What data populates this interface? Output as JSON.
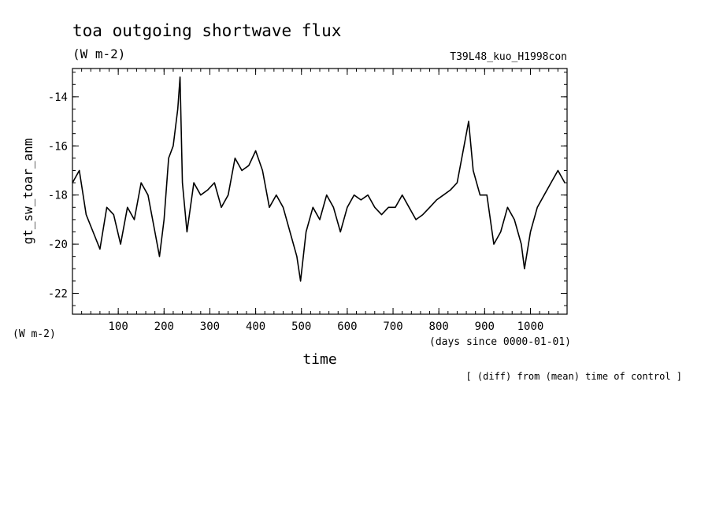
{
  "chart_data": {
    "type": "line",
    "title": "toa outgoing shortwave flux",
    "units": "(W m-2)",
    "run_label": "T39L48_kuo_H1998con",
    "ylabel": "gt_sw_toar_anm",
    "y_units_label": "(W m-2)",
    "xlabel": "time",
    "x_units_label": "(days since 0000-01-01)",
    "footnote": "[ (diff) from (mean) time of control ]",
    "xlim": [
      0,
      1080
    ],
    "ylim": [
      -22.85,
      -12.85
    ],
    "xticks_major": [
      100,
      200,
      300,
      400,
      500,
      600,
      700,
      800,
      900,
      1000
    ],
    "yticks_major": [
      -22,
      -20,
      -18,
      -16,
      -14
    ],
    "grid": false,
    "legend": "none",
    "line_color": "#000000",
    "series": [
      {
        "x": [
          0,
          15,
          30,
          45,
          60,
          75,
          90,
          105,
          120,
          135,
          150,
          165,
          180,
          190,
          200,
          210,
          220,
          230,
          235,
          240,
          250,
          265,
          280,
          295,
          310,
          325,
          340,
          355,
          370,
          385,
          400,
          415,
          430,
          445,
          460,
          475,
          490,
          498,
          510,
          525,
          540,
          555,
          570,
          585,
          600,
          615,
          630,
          645,
          660,
          675,
          690,
          705,
          720,
          735,
          750,
          765,
          780,
          795,
          810,
          825,
          840,
          855,
          865,
          875,
          890,
          905,
          920,
          935,
          950,
          965,
          980,
          987,
          1000,
          1015,
          1030,
          1045,
          1060,
          1075
        ],
        "y": [
          -17.5,
          -17.0,
          -18.8,
          -19.5,
          -20.2,
          -18.5,
          -18.8,
          -20.0,
          -18.5,
          -19.0,
          -17.5,
          -18.0,
          -19.5,
          -20.5,
          -19.0,
          -16.5,
          -16.0,
          -14.5,
          -13.2,
          -17.5,
          -19.5,
          -17.5,
          -18.0,
          -17.8,
          -17.5,
          -18.5,
          -18.0,
          -16.5,
          -17.0,
          -16.8,
          -16.2,
          -17.0,
          -18.5,
          -18.0,
          -18.5,
          -19.5,
          -20.5,
          -21.5,
          -19.5,
          -18.5,
          -19.0,
          -18.0,
          -18.5,
          -19.5,
          -18.5,
          -18.0,
          -18.2,
          -18.0,
          -18.5,
          -18.8,
          -18.5,
          -18.5,
          -18.0,
          -18.5,
          -19.0,
          -18.8,
          -18.5,
          -18.2,
          -18.0,
          -17.8,
          -17.5,
          -16.0,
          -15.0,
          -17.0,
          -18.0,
          -18.0,
          -20.0,
          -19.5,
          -18.5,
          -19.0,
          -20.0,
          -21.0,
          -19.5,
          -18.5,
          -18.0,
          -17.5,
          -17.0,
          -17.5
        ]
      }
    ]
  }
}
